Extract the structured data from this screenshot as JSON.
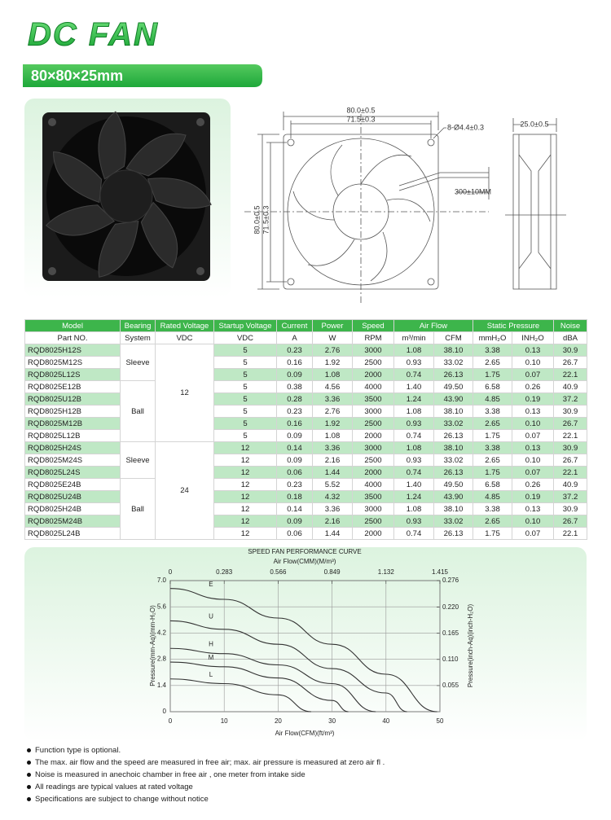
{
  "header": {
    "title": "DC FAN",
    "size": "80×80×25mm"
  },
  "drawing": {
    "front_width": "80.0±0.5",
    "front_hole_pitch": "71.5±0.3",
    "holes": "8-Ø4.4±0.3",
    "lead_length": "300±10MM",
    "side_depth": "25.0±0.5",
    "front_height": "80.0±0.5",
    "front_hole_pitch_vertical": "71.5±0.3"
  },
  "table": {
    "header1": [
      "Model",
      "Bearing",
      "Rated Voltage",
      "Startup Voltage",
      "Current",
      "Power",
      "Speed",
      "Air Flow",
      "Static Pressure",
      "Noise"
    ],
    "header2": [
      "Part NO.",
      "System",
      "VDC",
      "VDC",
      "A",
      "W",
      "RPM",
      "m³/min",
      "CFM",
      "mmH₂O",
      "INH₂O",
      "dBA"
    ],
    "bearing": [
      "Sleeve",
      "Ball",
      "Sleeve",
      "Ball"
    ],
    "rated_voltage": [
      "12",
      "24"
    ],
    "rows": [
      [
        "RQD8025H12S",
        "5",
        "0.23",
        "2.76",
        "3000",
        "1.08",
        "38.10",
        "3.38",
        "0.13",
        "30.9"
      ],
      [
        "RQD8025M12S",
        "5",
        "0.16",
        "1.92",
        "2500",
        "0.93",
        "33.02",
        "2.65",
        "0.10",
        "26.7"
      ],
      [
        "RQD8025L12S",
        "5",
        "0.09",
        "1.08",
        "2000",
        "0.74",
        "26.13",
        "1.75",
        "0.07",
        "22.1"
      ],
      [
        "RQD8025E12B",
        "5",
        "0.38",
        "4.56",
        "4000",
        "1.40",
        "49.50",
        "6.58",
        "0.26",
        "40.9"
      ],
      [
        "RQD8025U12B",
        "5",
        "0.28",
        "3.36",
        "3500",
        "1.24",
        "43.90",
        "4.85",
        "0.19",
        "37.2"
      ],
      [
        "RQD8025H12B",
        "5",
        "0.23",
        "2.76",
        "3000",
        "1.08",
        "38.10",
        "3.38",
        "0.13",
        "30.9"
      ],
      [
        "RQD8025M12B",
        "5",
        "0.16",
        "1.92",
        "2500",
        "0.93",
        "33.02",
        "2.65",
        "0.10",
        "26.7"
      ],
      [
        "RQD8025L12B",
        "5",
        "0.09",
        "1.08",
        "2000",
        "0.74",
        "26.13",
        "1.75",
        "0.07",
        "22.1"
      ],
      [
        "RQD8025H24S",
        "12",
        "0.14",
        "3.36",
        "3000",
        "1.08",
        "38.10",
        "3.38",
        "0.13",
        "30.9"
      ],
      [
        "RQD8025M24S",
        "12",
        "0.09",
        "2.16",
        "2500",
        "0.93",
        "33.02",
        "2.65",
        "0.10",
        "26.7"
      ],
      [
        "RQD8025L24S",
        "12",
        "0.06",
        "1.44",
        "2000",
        "0.74",
        "26.13",
        "1.75",
        "0.07",
        "22.1"
      ],
      [
        "RQD8025E24B",
        "12",
        "0.23",
        "5.52",
        "4000",
        "1.40",
        "49.50",
        "6.58",
        "0.26",
        "40.9"
      ],
      [
        "RQD8025U24B",
        "12",
        "0.18",
        "4.32",
        "3500",
        "1.24",
        "43.90",
        "4.85",
        "0.19",
        "37.2"
      ],
      [
        "RQD8025H24B",
        "12",
        "0.14",
        "3.36",
        "3000",
        "1.08",
        "38.10",
        "3.38",
        "0.13",
        "30.9"
      ],
      [
        "RQD8025M24B",
        "12",
        "0.09",
        "2.16",
        "2500",
        "0.93",
        "33.02",
        "2.65",
        "0.10",
        "26.7"
      ],
      [
        "RQD8025L24B",
        "12",
        "0.06",
        "1.44",
        "2000",
        "0.74",
        "26.13",
        "1.75",
        "0.07",
        "22.1"
      ]
    ]
  },
  "performance_curve": {
    "type": "line",
    "title": "SPEED FAN PERFORMANCE CURVE",
    "x2_label": "Air Flow(CMM)(M/m³)",
    "x_label": "Air Flow(CFM)(ft/m³)",
    "y_label": "Pressure(mm-Aq)(mm-H₂O)",
    "y2_label": "Pressure(inch-Aq)(inch-H₂O)",
    "xlim": [
      0,
      50
    ],
    "xticks": [
      0,
      10,
      20,
      30,
      40,
      50
    ],
    "x2lim": [
      0,
      1.415
    ],
    "x2ticks": [
      0,
      0.283,
      0.566,
      0.849,
      1.132,
      1.415
    ],
    "ylim": [
      0,
      7
    ],
    "yticks": [
      0,
      1.4,
      2.8,
      4.2,
      5.6,
      {
        "value": 7,
        "label": "7.0"
      }
    ],
    "y2lim": [
      0,
      0.276
    ],
    "y2ticks": [
      0.055,
      {
        "value": 0.11,
        "label": "0.110"
      },
      0.165,
      {
        "value": 0.22,
        "label": "0.220"
      },
      0.276
    ],
    "grid": true,
    "series": [
      {
        "name": "E",
        "color": "#333333",
        "x": [
          0,
          10,
          20,
          30,
          40,
          49.5
        ],
        "values": [
          6.58,
          6.0,
          5.0,
          3.6,
          2.0,
          0
        ]
      },
      {
        "name": "U",
        "color": "#333333",
        "x": [
          0,
          10,
          20,
          30,
          40,
          43.9
        ],
        "values": [
          4.85,
          4.4,
          3.6,
          2.3,
          1.0,
          0
        ]
      },
      {
        "name": "H",
        "color": "#333333",
        "x": [
          0,
          10,
          20,
          30,
          38.1
        ],
        "values": [
          3.38,
          3.1,
          2.5,
          1.5,
          0
        ]
      },
      {
        "name": "M",
        "color": "#333333",
        "x": [
          0,
          10,
          20,
          30,
          33.02
        ],
        "values": [
          2.65,
          2.4,
          1.8,
          0.6,
          0
        ]
      },
      {
        "name": "L",
        "color": "#333333",
        "x": [
          0,
          10,
          20,
          26.13
        ],
        "values": [
          1.75,
          1.5,
          0.9,
          0
        ]
      }
    ]
  },
  "notes": [
    "Function type is optional.",
    "The max. air flow and the speed are measured in free air; max. air pressure is measured at zero air fl    .",
    "Noise is measured in anechoic chamber in free air , one meter from intake side",
    "All readings are typical values at rated voltage",
    "Specifications are subject to change without notice"
  ]
}
